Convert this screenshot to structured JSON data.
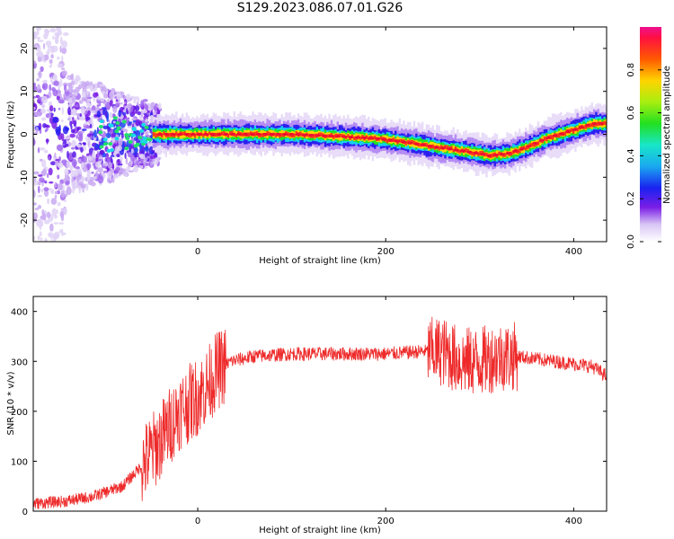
{
  "title": "S129.2023.086.07.01.G26",
  "chart_data": [
    {
      "type": "heatmap",
      "xlabel": "Height of straight line (km)",
      "ylabel": "Frequency (Hz)",
      "xlim": [
        -175,
        435
      ],
      "ylim": [
        -25,
        25
      ],
      "xticks": [
        0,
        200,
        400
      ],
      "yticks": [
        -20,
        -10,
        0,
        10,
        20
      ],
      "colorbar": {
        "label": "Normalized spectral amplitude",
        "range": [
          0,
          1
        ],
        "ticks": [
          "0.0",
          "0.2",
          "0.4",
          "0.6",
          "0.8"
        ]
      },
      "ridge_centre_hz": [
        [
          -45,
          0
        ],
        [
          0,
          0
        ],
        [
          100,
          0
        ],
        [
          150,
          -0.5
        ],
        [
          190,
          -1
        ],
        [
          210,
          -1.5
        ],
        [
          240,
          -2.5
        ],
        [
          270,
          -3.5
        ],
        [
          300,
          -4.5
        ],
        [
          310,
          -5
        ],
        [
          330,
          -4.5
        ],
        [
          350,
          -3
        ],
        [
          370,
          -1
        ],
        [
          400,
          1
        ],
        [
          420,
          2.5
        ],
        [
          435,
          2.5
        ]
      ]
    },
    {
      "type": "line",
      "xlabel": "Height of straight line (km)",
      "ylabel": "SNR (10 * v/v)",
      "xlim": [
        -175,
        435
      ],
      "ylim": [
        0,
        430
      ],
      "xticks": [
        0,
        200,
        400
      ],
      "yticks": [
        0,
        100,
        200,
        300,
        400
      ],
      "series": [
        {
          "color": "#ee2a2a",
          "envelope": [
            [
              -175,
              15
            ],
            [
              -140,
              20
            ],
            [
              -110,
              30
            ],
            [
              -80,
              50
            ],
            [
              -60,
              90
            ],
            [
              -40,
              140
            ],
            [
              -20,
              200
            ],
            [
              0,
              230
            ],
            [
              10,
              250
            ],
            [
              20,
              280
            ],
            [
              35,
              300
            ],
            [
              60,
              310
            ],
            [
              100,
              315
            ],
            [
              150,
              315
            ],
            [
              200,
              315
            ],
            [
              240,
              320
            ],
            [
              260,
              320
            ],
            [
              280,
              300
            ],
            [
              300,
              300
            ],
            [
              320,
              310
            ],
            [
              340,
              310
            ],
            [
              380,
              300
            ],
            [
              420,
              290
            ],
            [
              435,
              270
            ]
          ]
        }
      ]
    }
  ]
}
